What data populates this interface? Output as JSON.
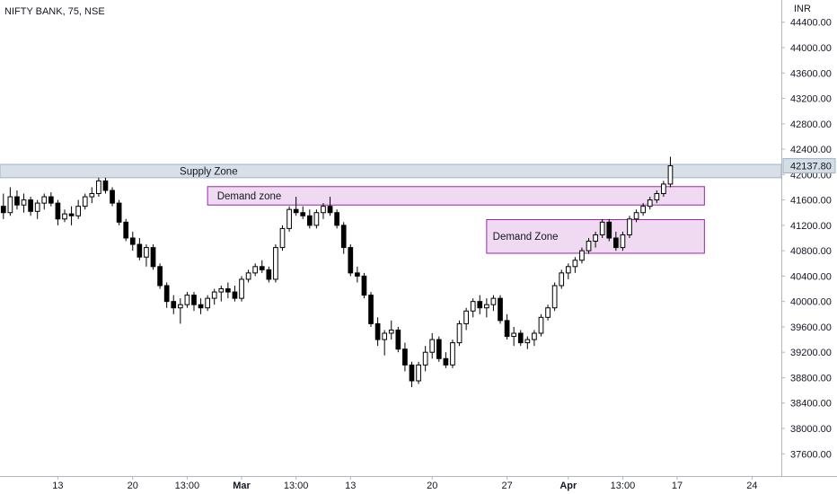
{
  "header": {
    "symbol_title": "NIFTY BANK, 75, NSE",
    "currency": "INR"
  },
  "colors": {
    "candle_up": "#ffffff",
    "candle_down": "#000000",
    "candle_outline": "#000000",
    "supply_fill": "#d4dce4",
    "supply_border": "#9fb3c8",
    "demand_fill": "#ecd3ee",
    "demand_border": "#9c27b0",
    "axis_line": "#b2b5be"
  },
  "chart_data": {
    "type": "candlestick",
    "title": "NIFTY BANK, 75, NSE",
    "y_unit": "INR",
    "ylim": [
      37250,
      44750
    ],
    "y_ticks": [
      37600,
      38000,
      38400,
      38800,
      39200,
      39600,
      40000,
      40400,
      40800,
      41200,
      41600,
      42000,
      42400,
      42800,
      43200,
      43600,
      44000,
      44400
    ],
    "y_tick_labels": [
      "37600.00",
      "38000.00",
      "38400.00",
      "38800.00",
      "39200.00",
      "39600.00",
      "40000.00",
      "40400.00",
      "40800.00",
      "41200.00",
      "41600.00",
      "42000.00",
      "42400.00",
      "42800.00",
      "43200.00",
      "43600.00",
      "44000.00",
      "44400.00"
    ],
    "last_price": 42137.8,
    "last_price_label": "42137.80",
    "x_ticks": [
      {
        "label": "13",
        "bar": 8,
        "bold": false
      },
      {
        "label": "20",
        "bar": 19,
        "bold": false
      },
      {
        "label": "13:00",
        "bar": 27,
        "bold": false
      },
      {
        "label": "Mar",
        "bar": 35,
        "bold": true
      },
      {
        "label": "13:00",
        "bar": 43,
        "bold": false
      },
      {
        "label": "13",
        "bar": 51,
        "bold": false
      },
      {
        "label": "20",
        "bar": 63,
        "bold": false
      },
      {
        "label": "27",
        "bar": 74,
        "bold": false
      },
      {
        "label": "Apr",
        "bar": 83,
        "bold": true
      },
      {
        "label": "13:00",
        "bar": 91,
        "bold": false
      },
      {
        "label": "17",
        "bar": 99,
        "bold": false
      },
      {
        "label": "24",
        "bar": 110,
        "bold": false
      }
    ],
    "x_range": [
      -0.5,
      114.3
    ],
    "zones": [
      {
        "name": "supply",
        "label": "Supply Zone",
        "y_low": 41950,
        "y_high": 42160,
        "bar_start": -0.5,
        "bar_end": 114.3,
        "label_bar": 25.5
      },
      {
        "name": "demand-1",
        "label": "Demand zone",
        "y_low": 41520,
        "y_high": 41810,
        "bar_start": 30,
        "bar_end": 103,
        "label_bar": 31
      },
      {
        "name": "demand-2",
        "label": "Demand Zone",
        "y_low": 40760,
        "y_high": 41290,
        "bar_start": 71,
        "bar_end": 103,
        "label_bar": 71.5
      }
    ],
    "ohlc": [
      [
        41500,
        41700,
        41300,
        41400
      ],
      [
        41400,
        41800,
        41350,
        41650
      ],
      [
        41650,
        41750,
        41450,
        41520
      ],
      [
        41520,
        41700,
        41400,
        41600
      ],
      [
        41600,
        41650,
        41350,
        41420
      ],
      [
        41420,
        41600,
        41300,
        41550
      ],
      [
        41550,
        41700,
        41450,
        41650
      ],
      [
        41650,
        41720,
        41500,
        41550
      ],
      [
        41550,
        41600,
        41200,
        41300
      ],
      [
        41300,
        41450,
        41250,
        41380
      ],
      [
        41380,
        41500,
        41200,
        41350
      ],
      [
        41350,
        41600,
        41300,
        41500
      ],
      [
        41500,
        41700,
        41450,
        41650
      ],
      [
        41650,
        41800,
        41550,
        41700
      ],
      [
        41700,
        41950,
        41650,
        41900
      ],
      [
        41900,
        41950,
        41700,
        41750
      ],
      [
        41750,
        41800,
        41500,
        41550
      ],
      [
        41550,
        41600,
        41200,
        41250
      ],
      [
        41250,
        41300,
        40950,
        41000
      ],
      [
        41000,
        41100,
        40800,
        40900
      ],
      [
        40900,
        41000,
        40650,
        40700
      ],
      [
        40700,
        40900,
        40550,
        40850
      ],
      [
        40850,
        40900,
        40500,
        40550
      ],
      [
        40550,
        40600,
        40200,
        40250
      ],
      [
        40250,
        40300,
        39900,
        40000
      ],
      [
        40000,
        40100,
        39800,
        39900
      ],
      [
        39900,
        40050,
        39650,
        39950
      ],
      [
        39950,
        40150,
        39900,
        40100
      ],
      [
        40100,
        40150,
        39850,
        39950
      ],
      [
        39950,
        40050,
        39800,
        39900
      ],
      [
        39900,
        40100,
        39850,
        40050
      ],
      [
        40050,
        40200,
        39950,
        40150
      ],
      [
        40150,
        40250,
        40000,
        40200
      ],
      [
        40200,
        40300,
        40050,
        40150
      ],
      [
        40150,
        40250,
        40000,
        40050
      ],
      [
        40050,
        40400,
        40000,
        40350
      ],
      [
        40350,
        40500,
        40300,
        40450
      ],
      [
        40450,
        40600,
        40400,
        40550
      ],
      [
        40550,
        40650,
        40450,
        40500
      ],
      [
        40500,
        40550,
        40300,
        40350
      ],
      [
        40350,
        40900,
        40300,
        40850
      ],
      [
        40850,
        41200,
        40800,
        41150
      ],
      [
        41150,
        41500,
        41100,
        41450
      ],
      [
        41450,
        41650,
        41350,
        41400
      ],
      [
        41400,
        41500,
        41300,
        41350
      ],
      [
        41350,
        41450,
        41150,
        41200
      ],
      [
        41200,
        41450,
        41150,
        41400
      ],
      [
        41400,
        41550,
        41300,
        41500
      ],
      [
        41500,
        41650,
        41350,
        41400
      ],
      [
        41400,
        41450,
        41150,
        41200
      ],
      [
        41200,
        41250,
        40750,
        40850
      ],
      [
        40850,
        40900,
        40400,
        40450
      ],
      [
        40450,
        40550,
        40300,
        40400
      ],
      [
        40400,
        40450,
        40050,
        40100
      ],
      [
        40100,
        40150,
        39600,
        39650
      ],
      [
        39650,
        39750,
        39300,
        39400
      ],
      [
        39400,
        39550,
        39150,
        39500
      ],
      [
        39500,
        39700,
        39400,
        39550
      ],
      [
        39550,
        39600,
        39200,
        39250
      ],
      [
        39250,
        39350,
        38900,
        39000
      ],
      [
        39000,
        39050,
        38650,
        38750
      ],
      [
        38750,
        39050,
        38700,
        39000
      ],
      [
        39000,
        39300,
        38900,
        39200
      ],
      [
        39200,
        39500,
        39100,
        39400
      ],
      [
        39400,
        39450,
        39050,
        39100
      ],
      [
        39100,
        39200,
        38950,
        39000
      ],
      [
        39000,
        39400,
        38950,
        39350
      ],
      [
        39350,
        39700,
        39300,
        39650
      ],
      [
        39650,
        39900,
        39550,
        39850
      ],
      [
        39850,
        40050,
        39750,
        40000
      ],
      [
        40000,
        40100,
        39800,
        39900
      ],
      [
        39900,
        40050,
        39750,
        39950
      ],
      [
        39950,
        40100,
        39850,
        40050
      ],
      [
        40050,
        40100,
        39650,
        39700
      ],
      [
        39700,
        39800,
        39400,
        39450
      ],
      [
        39450,
        39600,
        39300,
        39500
      ],
      [
        39500,
        39550,
        39300,
        39350
      ],
      [
        39350,
        39450,
        39250,
        39400
      ],
      [
        39400,
        39550,
        39300,
        39500
      ],
      [
        39500,
        39800,
        39450,
        39750
      ],
      [
        39750,
        39950,
        39700,
        39900
      ],
      [
        39900,
        40300,
        39850,
        40250
      ],
      [
        40250,
        40500,
        40200,
        40450
      ],
      [
        40450,
        40600,
        40350,
        40550
      ],
      [
        40550,
        40700,
        40450,
        40650
      ],
      [
        40650,
        40850,
        40600,
        40800
      ],
      [
        40800,
        41000,
        40750,
        40950
      ],
      [
        40950,
        41100,
        40850,
        41050
      ],
      [
        41050,
        41300,
        41000,
        41250
      ],
      [
        41250,
        41300,
        40950,
        41000
      ],
      [
        41000,
        41100,
        40800,
        40850
      ],
      [
        40850,
        41100,
        40800,
        41050
      ],
      [
        41050,
        41350,
        41000,
        41300
      ],
      [
        41300,
        41450,
        41250,
        41400
      ],
      [
        41400,
        41550,
        41350,
        41500
      ],
      [
        41500,
        41650,
        41450,
        41600
      ],
      [
        41600,
        41750,
        41550,
        41700
      ],
      [
        41700,
        41900,
        41650,
        41850
      ],
      [
        41850,
        42280,
        41800,
        42138
      ]
    ]
  }
}
